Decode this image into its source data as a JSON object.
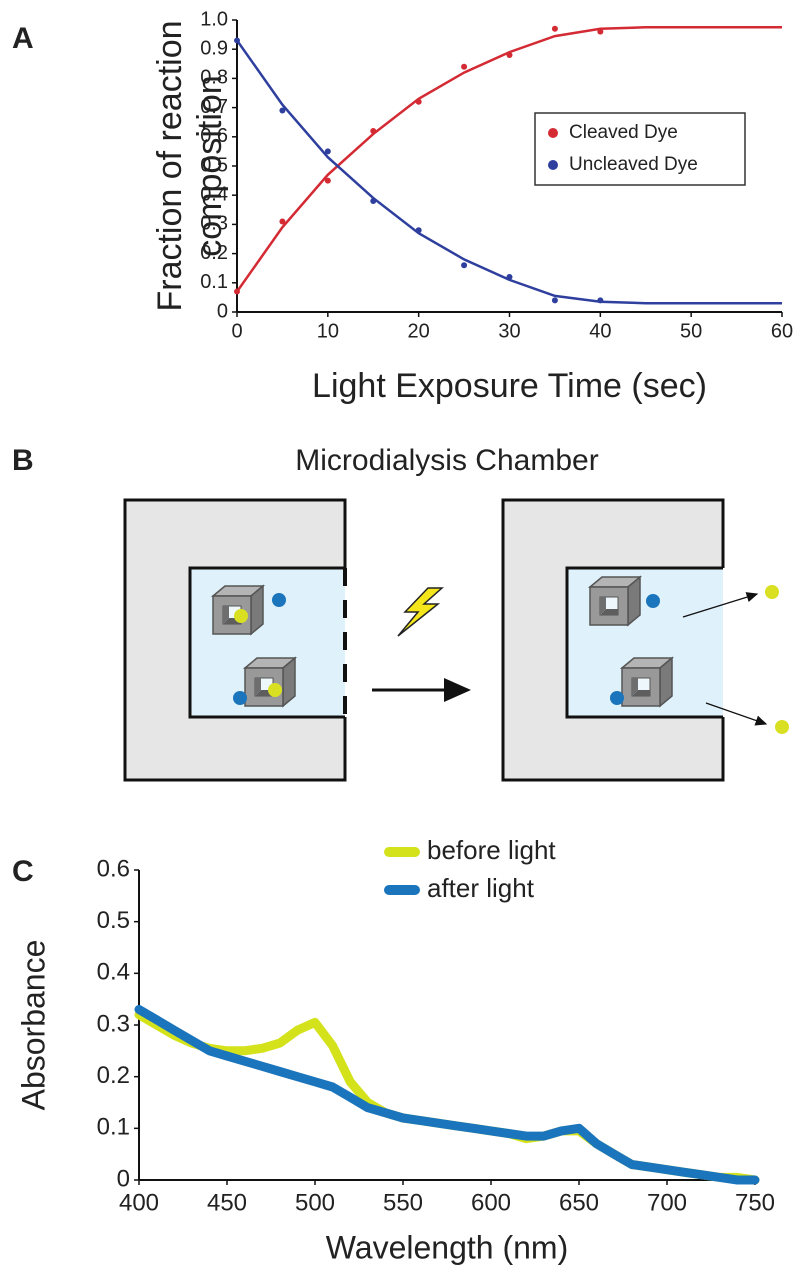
{
  "panel_labels": [
    "A",
    "B",
    "C"
  ],
  "diagram": {
    "title": "Microdialysis Chamber"
  },
  "chart_data": [
    {
      "type": "scatter",
      "xlabel": "Light Exposure Time (sec)",
      "ylabel": [
        "Fraction of reaction",
        "composition"
      ],
      "xlim": [
        0,
        60
      ],
      "ylim": [
        0,
        1
      ],
      "xticks": [
        0,
        10,
        20,
        30,
        40,
        50,
        60
      ],
      "yticks": [
        0,
        0.1,
        0.2,
        0.3,
        0.4,
        0.5,
        0.6,
        0.7,
        0.8,
        0.9,
        {
          "value": 1,
          "label": "1.0"
        }
      ],
      "x": [
        0,
        5,
        10,
        15,
        20,
        25,
        30,
        35,
        40
      ],
      "fit_x": [
        0,
        5,
        10,
        15,
        20,
        25,
        30,
        35,
        40,
        45,
        50,
        55,
        60
      ],
      "legend": "upper right",
      "series": [
        {
          "name": "Cleaved Dye",
          "color": "#d42a33",
          "values": [
            0.07,
            0.31,
            0.45,
            0.62,
            0.72,
            0.84,
            0.88,
            0.97,
            0.96
          ],
          "fit": [
            0.07,
            0.29,
            0.47,
            0.61,
            0.73,
            0.82,
            0.89,
            0.945,
            0.97,
            0.975,
            0.975,
            0.975,
            0.975
          ]
        },
        {
          "name": "Uncleaved Dye",
          "color": "#2e3f9e",
          "values": [
            0.93,
            0.69,
            0.55,
            0.38,
            0.28,
            0.16,
            0.12,
            0.04,
            0.04
          ],
          "fit": [
            0.93,
            0.71,
            0.53,
            0.39,
            0.27,
            0.18,
            0.11,
            0.055,
            0.035,
            0.03,
            0.03,
            0.03,
            0.03
          ]
        }
      ]
    },
    {
      "type": "line",
      "xlabel": "Wavelength (nm)",
      "ylabel": "Absorbance",
      "xlim": [
        400,
        750
      ],
      "ylim": [
        0,
        0.6
      ],
      "xticks": [
        400,
        450,
        500,
        550,
        600,
        650,
        700,
        750
      ],
      "yticks": [
        0,
        0.1,
        0.2,
        0.3,
        0.4,
        0.5,
        0.6
      ],
      "legend": "upper center",
      "x": [
        400,
        410,
        420,
        430,
        440,
        450,
        460,
        470,
        480,
        490,
        500,
        510,
        520,
        530,
        540,
        550,
        560,
        570,
        580,
        590,
        600,
        610,
        620,
        630,
        640,
        650,
        660,
        670,
        680,
        690,
        700,
        710,
        720,
        730,
        740,
        750
      ],
      "series": [
        {
          "name": "before light",
          "color": "#d4e21c",
          "values": [
            0.32,
            0.3,
            0.28,
            0.265,
            0.255,
            0.25,
            0.25,
            0.255,
            0.265,
            0.29,
            0.305,
            0.26,
            0.19,
            0.15,
            0.13,
            0.12,
            0.115,
            0.11,
            0.105,
            0.1,
            0.095,
            0.09,
            0.08,
            0.085,
            0.095,
            0.095,
            0.07,
            0.05,
            0.03,
            0.025,
            0.02,
            0.015,
            0.01,
            0.005,
            0.005,
            0
          ]
        },
        {
          "name": "after light",
          "color": "#1b75bc",
          "values": [
            0.33,
            0.31,
            0.29,
            0.27,
            0.25,
            0.24,
            0.23,
            0.22,
            0.21,
            0.2,
            0.19,
            0.18,
            0.16,
            0.14,
            0.13,
            0.12,
            0.115,
            0.11,
            0.105,
            0.1,
            0.095,
            0.09,
            0.085,
            0.085,
            0.095,
            0.1,
            0.07,
            0.05,
            0.03,
            0.025,
            0.02,
            0.015,
            0.01,
            0.005,
            0,
            0
          ]
        }
      ]
    }
  ]
}
